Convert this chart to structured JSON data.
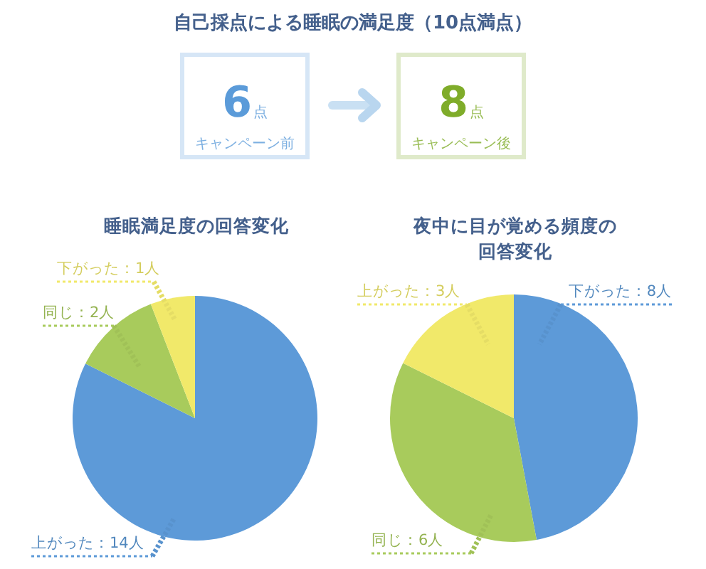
{
  "chart_data": [
    {
      "type": "other",
      "title": "自己採点による睡眠の満足度（10点満点）",
      "categories": [
        "キャンペーン前",
        "キャンペーン後"
      ],
      "values": [
        6,
        8
      ],
      "value_labels": [
        "6点",
        "8点"
      ],
      "colors": [
        "#5b9bd9",
        "#7fac2a"
      ]
    },
    {
      "type": "pie",
      "title": "睡眠満足度の回答変化",
      "categories": [
        "上がった",
        "同じ",
        "下がった"
      ],
      "values": [
        14,
        2,
        1
      ],
      "value_labels": [
        "：14人",
        "：2人",
        "：1人"
      ],
      "colors": [
        "#5d9ad8",
        "#a8cb5c",
        "#f1e96a"
      ]
    },
    {
      "type": "pie",
      "title": "夜中に目が覚める頻度の回答変化",
      "categories": [
        "下がった",
        "同じ",
        "上がった"
      ],
      "values": [
        8,
        6,
        3
      ],
      "value_labels": [
        "：8人",
        "：6人",
        "：3人"
      ],
      "colors": [
        "#5d9ad8",
        "#a8cb5c",
        "#f1e96a"
      ]
    }
  ]
}
